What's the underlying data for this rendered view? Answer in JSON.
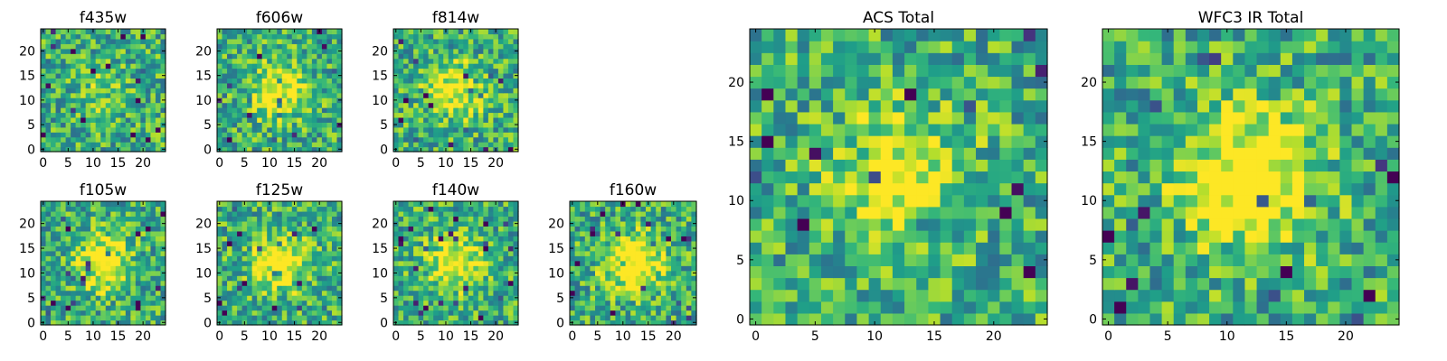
{
  "chart_data": [
    {
      "type": "heatmap",
      "title": "f435w",
      "xticks": [
        0,
        5,
        10,
        15,
        20
      ],
      "yticks": [
        0,
        5,
        10,
        15,
        20
      ],
      "xlim": [
        -0.5,
        24.5
      ],
      "ylim": [
        -0.5,
        24.5
      ],
      "colormap": "viridis",
      "source_blob": 0.15
    },
    {
      "type": "heatmap",
      "title": "f606w",
      "xticks": [
        0,
        5,
        10,
        15,
        20
      ],
      "yticks": [
        0,
        5,
        10,
        15,
        20
      ],
      "xlim": [
        -0.5,
        24.5
      ],
      "ylim": [
        -0.5,
        24.5
      ],
      "colormap": "viridis",
      "source_blob": 0.45
    },
    {
      "type": "heatmap",
      "title": "f814w",
      "xticks": [
        0,
        5,
        10,
        15,
        20
      ],
      "yticks": [
        0,
        5,
        10,
        15,
        20
      ],
      "xlim": [
        -0.5,
        24.5
      ],
      "ylim": [
        -0.5,
        24.5
      ],
      "colormap": "viridis",
      "source_blob": 0.45
    },
    {
      "type": "heatmap",
      "title": "f105w",
      "xticks": [
        0,
        5,
        10,
        15,
        20
      ],
      "yticks": [
        0,
        5,
        10,
        15,
        20
      ],
      "xlim": [
        -0.5,
        24.5
      ],
      "ylim": [
        -0.5,
        24.5
      ],
      "colormap": "viridis",
      "source_blob": 0.5
    },
    {
      "type": "heatmap",
      "title": "f125w",
      "xticks": [
        0,
        5,
        10,
        15,
        20
      ],
      "yticks": [
        0,
        5,
        10,
        15,
        20
      ],
      "xlim": [
        -0.5,
        24.5
      ],
      "ylim": [
        -0.5,
        24.5
      ],
      "colormap": "viridis",
      "source_blob": 0.45
    },
    {
      "type": "heatmap",
      "title": "f140w",
      "xticks": [
        0,
        5,
        10,
        15,
        20
      ],
      "yticks": [
        0,
        5,
        10,
        15,
        20
      ],
      "xlim": [
        -0.5,
        24.5
      ],
      "ylim": [
        -0.5,
        24.5
      ],
      "colormap": "viridis",
      "source_blob": 0.45
    },
    {
      "type": "heatmap",
      "title": "f160w",
      "xticks": [
        0,
        5,
        10,
        15,
        20
      ],
      "yticks": [
        0,
        5,
        10,
        15,
        20
      ],
      "xlim": [
        -0.5,
        24.5
      ],
      "ylim": [
        -0.5,
        24.5
      ],
      "colormap": "viridis",
      "source_blob": 0.6
    },
    {
      "type": "heatmap",
      "title": "ACS Total",
      "xticks": [
        0,
        5,
        10,
        15,
        20
      ],
      "yticks": [
        0,
        5,
        10,
        15,
        20
      ],
      "xlim": [
        -0.5,
        24.5
      ],
      "ylim": [
        -0.5,
        24.5
      ],
      "colormap": "viridis",
      "source_blob": 0.45
    },
    {
      "type": "heatmap",
      "title": "WFC3 IR Total",
      "xticks": [
        0,
        5,
        10,
        15,
        20
      ],
      "yticks": [
        0,
        5,
        10,
        15,
        20
      ],
      "xlim": [
        -0.5,
        24.5
      ],
      "ylim": [
        -0.5,
        24.5
      ],
      "colormap": "viridis",
      "source_blob": 0.6
    }
  ]
}
